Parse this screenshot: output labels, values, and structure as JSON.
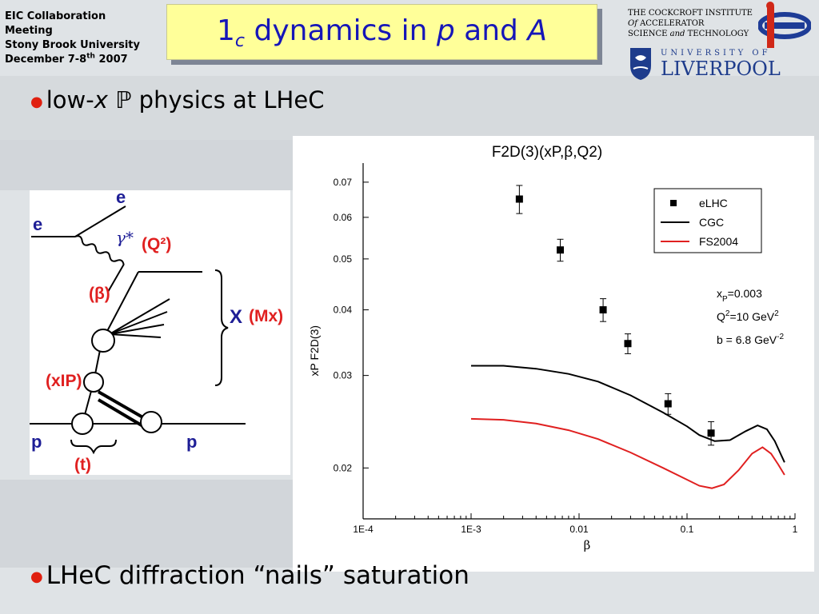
{
  "header": {
    "meeting": [
      "EIC Collaboration",
      "Meeting",
      "Stony Brook University"
    ],
    "date_prefix": "December 7-8",
    "date_sup": "th",
    "date_suffix": " 2007",
    "title_pre": "1",
    "title_sub": "c",
    "title_post": " dynamics in ",
    "title_p": "p",
    "title_and": " and ",
    "title_A": "A"
  },
  "institute": {
    "line1": "THE COCKCROFT INSTITUTE",
    "line2a": "Of",
    "line2b": " ACCELERATOR",
    "line3a": "SCIENCE ",
    "line3b": "and",
    "line3c": " TECHNOLOGY",
    "uni_top": "UNIVERSITY OF",
    "uni_name": "LIVERPOOL"
  },
  "bullets": {
    "b1_pre": "low-",
    "b1_x": "x",
    "b1_P": "ℙ",
    "b1_post": " physics at LHeC",
    "b2": "LHeC diffraction “nails” saturation"
  },
  "diagram": {
    "e_in": "e",
    "e_out": "e",
    "gamma": "γ*",
    "Q2": "(Q²)",
    "beta": "(β)",
    "X": "X",
    "MX": "(Mx)",
    "xP": "(xIP)",
    "p_in": "p",
    "p_out": "p",
    "t": "(t)"
  },
  "chart_data": {
    "type": "scatter",
    "title": "F2D(3)(xP,β,Q2)",
    "xlabel": "β",
    "ylabel": "xP F2D(3)",
    "xscale": "log",
    "yscale": "log",
    "xlim": [
      0.0001,
      1
    ],
    "ylim": [
      0.016,
      0.074
    ],
    "xticks": [
      {
        "v": 0.0001,
        "label": "1E-4"
      },
      {
        "v": 0.001,
        "label": "1E-3"
      },
      {
        "v": 0.01,
        "label": "0.01"
      },
      {
        "v": 0.1,
        "label": "0.1"
      },
      {
        "v": 1,
        "label": "1"
      }
    ],
    "yticks": [
      {
        "v": 0.02,
        "label": "0.02"
      },
      {
        "v": 0.03,
        "label": "0.03"
      },
      {
        "v": 0.04,
        "label": "0.04"
      },
      {
        "v": 0.05,
        "label": "0.05"
      },
      {
        "v": 0.06,
        "label": "0.06"
      },
      {
        "v": 0.07,
        "label": "0.07"
      }
    ],
    "series": [
      {
        "name": "eLHC",
        "kind": "points",
        "color": "#000000",
        "x": [
          0.0028,
          0.0067,
          0.0167,
          0.0283,
          0.0667,
          0.167
        ],
        "y": [
          0.065,
          0.052,
          0.04,
          0.0345,
          0.0265,
          0.0233
        ],
        "err": [
          0.004,
          0.0025,
          0.002,
          0.0015,
          0.0012,
          0.0012
        ]
      },
      {
        "name": "CGC",
        "kind": "line",
        "color": "#000000",
        "x": [
          0.001,
          0.002,
          0.004,
          0.008,
          0.015,
          0.03,
          0.06,
          0.1,
          0.13,
          0.18,
          0.25,
          0.35,
          0.45,
          0.55,
          0.65,
          0.8
        ],
        "y": [
          0.0313,
          0.0313,
          0.0309,
          0.0302,
          0.0292,
          0.0275,
          0.0255,
          0.024,
          0.0231,
          0.0225,
          0.0226,
          0.0235,
          0.0241,
          0.0237,
          0.0225,
          0.0205
        ]
      },
      {
        "name": "FS2004",
        "kind": "line",
        "color": "#e02020",
        "x": [
          0.001,
          0.002,
          0.004,
          0.008,
          0.015,
          0.03,
          0.06,
          0.1,
          0.13,
          0.17,
          0.22,
          0.3,
          0.4,
          0.5,
          0.6,
          0.7,
          0.8
        ],
        "y": [
          0.0248,
          0.0247,
          0.0243,
          0.0236,
          0.0227,
          0.0214,
          0.02,
          0.019,
          0.0185,
          0.0183,
          0.0186,
          0.0198,
          0.0213,
          0.0219,
          0.0213,
          0.0203,
          0.0194
        ]
      }
    ],
    "legend_position": "top-right",
    "annotations": [
      {
        "key": "xp",
        "main": "x",
        "sub": "P",
        "rest": "=0.003"
      },
      {
        "key": "q2",
        "main": "Q",
        "sup": "2",
        "rest": "=10 GeV",
        "sup2": "2"
      },
      {
        "key": "b",
        "main": "b = 6.8 GeV",
        "sup2": "-2"
      }
    ]
  }
}
